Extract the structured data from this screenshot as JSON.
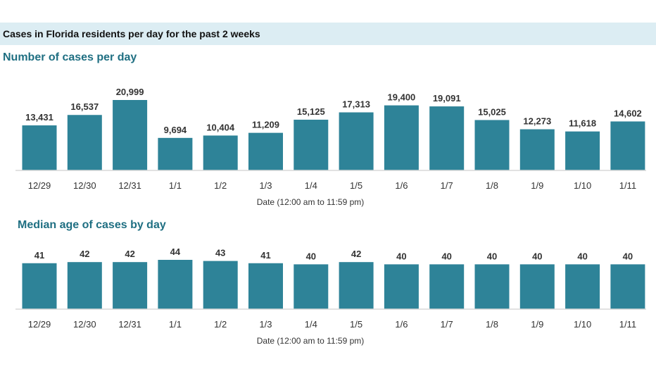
{
  "header": {
    "title": "Cases in Florida residents per day for the past 2 weeks"
  },
  "chart_data": [
    {
      "type": "bar",
      "title": "Number of cases per day",
      "xlabel": "Date (12:00 am to 11:59 pm)",
      "categories": [
        "12/29",
        "12/30",
        "12/31",
        "1/1",
        "1/2",
        "1/3",
        "1/4",
        "1/5",
        "1/6",
        "1/7",
        "1/8",
        "1/9",
        "1/10",
        "1/11"
      ],
      "values": [
        13431,
        16537,
        20999,
        9694,
        10404,
        11209,
        15125,
        17313,
        19400,
        19091,
        15025,
        12273,
        11618,
        14602
      ],
      "value_labels": [
        "13,431",
        "16,537",
        "20,999",
        "9,694",
        "10,404",
        "11,209",
        "15,125",
        "17,313",
        "19,400",
        "19,091",
        "15,025",
        "12,273",
        "11,618",
        "14,602"
      ],
      "ylim": [
        0,
        20999
      ],
      "color": "#2e8398"
    },
    {
      "type": "bar",
      "title": "Median age of cases by day",
      "xlabel": "Date (12:00 am to 11:59 pm)",
      "categories": [
        "12/29",
        "12/30",
        "12/31",
        "1/1",
        "1/2",
        "1/3",
        "1/4",
        "1/5",
        "1/6",
        "1/7",
        "1/8",
        "1/9",
        "1/10",
        "1/11"
      ],
      "values": [
        41,
        42,
        42,
        44,
        43,
        41,
        40,
        42,
        40,
        40,
        40,
        40,
        40,
        40
      ],
      "value_labels": [
        "41",
        "42",
        "42",
        "44",
        "43",
        "41",
        "40",
        "42",
        "40",
        "40",
        "40",
        "40",
        "40",
        "40"
      ],
      "ylim": [
        0,
        44
      ],
      "color": "#2e8398"
    }
  ]
}
